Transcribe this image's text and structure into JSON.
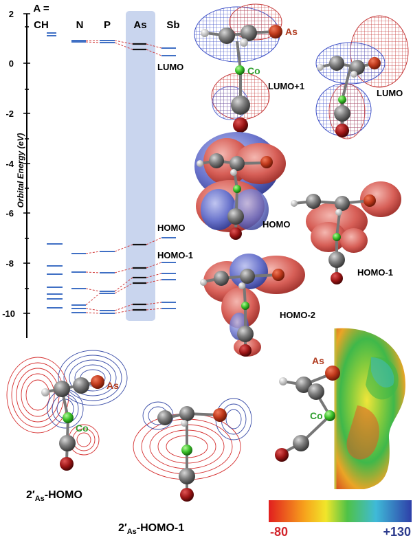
{
  "energy_diagram": {
    "axis_label": "Orbital Energy (eV)",
    "y_ticks": [
      "2",
      "0",
      "-2",
      "-4",
      "-6",
      "-8",
      "-10"
    ],
    "col_a_eq": "A =",
    "columns": [
      "CH",
      "N",
      "P",
      "As",
      "Sb"
    ],
    "level_labels": {
      "lumo": "LUMO",
      "homo": "HOMO",
      "homo1": "HOMO-1"
    }
  },
  "orbitals": {
    "as_label": "As",
    "co_label": "Co",
    "lumo1": "LUMO+1",
    "lumo": "LUMO",
    "homo": "HOMO",
    "homo1": "HOMO-1",
    "homo2": "HOMO-2"
  },
  "contours": {
    "as_label": "As",
    "co_label": "Co",
    "caption_homo_pre": "2′",
    "caption_homo_sub": "As",
    "caption_homo_post": "-HOMO",
    "caption_homo1_pre": "2′",
    "caption_homo1_sub": "As",
    "caption_homo1_post": "-HOMO-1"
  },
  "esp": {
    "as_label": "As",
    "co_label": "Co",
    "scale_min": "-80",
    "scale_max": "+130"
  },
  "colors": {
    "level_blue": "#3f6fc4",
    "highlight": "#c9d5ee",
    "connector_red": "#d23b3b",
    "as_red": "#b03a1e",
    "co_green": "#2e9e2e"
  }
}
